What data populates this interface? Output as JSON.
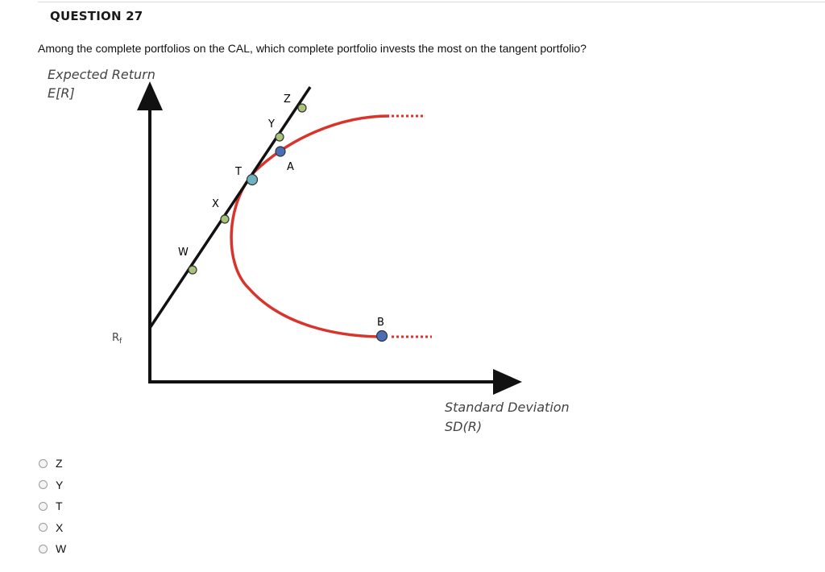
{
  "question": {
    "title": "QUESTION 27",
    "text": "Among the complete portfolios on the CAL, which complete portfolio invests the most on the tangent portfolio?"
  },
  "figure": {
    "y_axis_label_line1": "Expected Return",
    "y_axis_label_line2": "E[R]",
    "x_axis_label_line1": "Standard Deviation",
    "x_axis_label_line2": "SD(R)",
    "rf_label": "Rf",
    "points": {
      "W": "W",
      "X": "X",
      "T": "T",
      "Y": "Y",
      "Z": "Z",
      "A": "A",
      "B": "B"
    },
    "colors": {
      "cal_line": "#111111",
      "frontier": "#d9342b",
      "green_point": "#a8c47a",
      "tangent_point": "#6fb3c2",
      "blue_point": "#4a6db5"
    }
  },
  "options": [
    {
      "label": "Z"
    },
    {
      "label": "Y"
    },
    {
      "label": "T"
    },
    {
      "label": "X"
    },
    {
      "label": "W"
    }
  ]
}
